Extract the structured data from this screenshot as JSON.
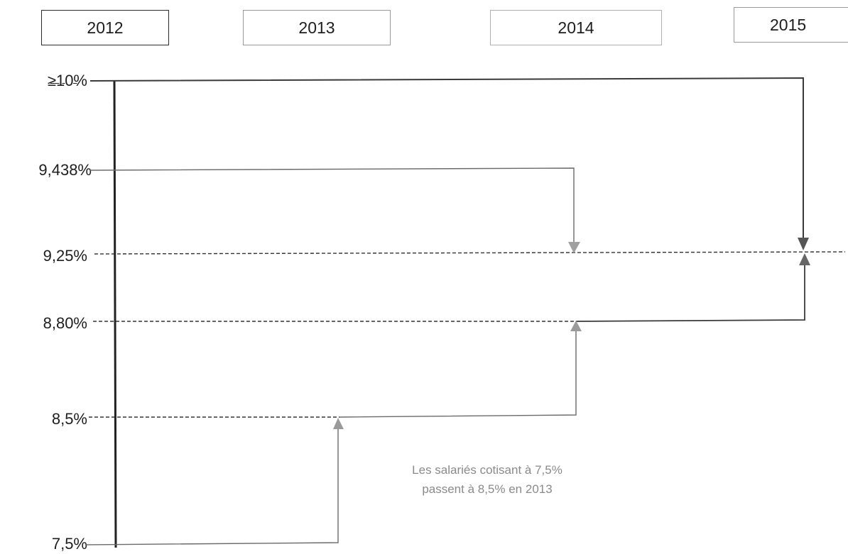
{
  "years": [
    {
      "label": "2012"
    },
    {
      "label": "2013"
    },
    {
      "label": "2014"
    },
    {
      "label": "2015"
    }
  ],
  "levels": [
    {
      "label": "≥10%"
    },
    {
      "label": "9,438%"
    },
    {
      "label": "9,25%"
    },
    {
      "label": "8,80%"
    },
    {
      "label": "8,5%"
    },
    {
      "label": "7,5%"
    }
  ],
  "annotation": {
    "line1": "Les salariés cotisant à 7,5%",
    "line2": "passent à 8,5% en 2013"
  },
  "colors": {
    "dark": "#2b2b2b",
    "medium": "#555555",
    "light": "#7a7a7a",
    "arrow": "#8f8f8f",
    "dashed": "#333333"
  }
}
